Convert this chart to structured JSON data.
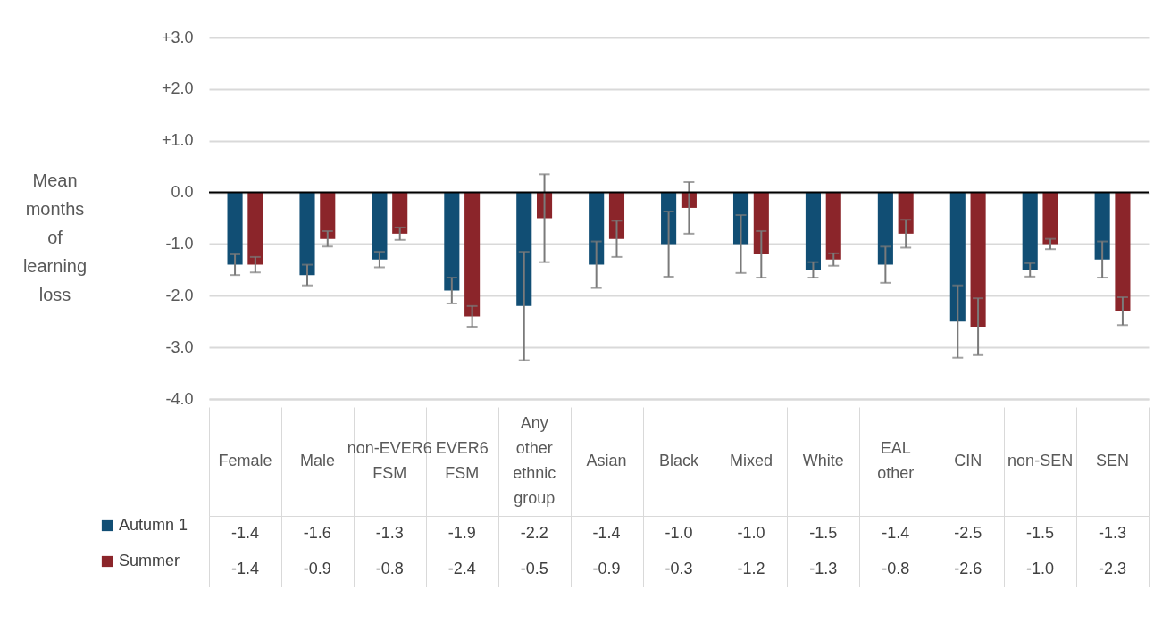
{
  "chart_data": {
    "type": "bar",
    "ylabel": "Mean months of learning loss",
    "categories": [
      "Female",
      "Male",
      "non-EVER6 FSM",
      "EVER6 FSM",
      "Any other ethnic group",
      "Asian",
      "Black",
      "Mixed",
      "White",
      "EAL other",
      "CIN",
      "non-SEN",
      "SEN"
    ],
    "series": [
      {
        "name": "Autumn 1",
        "color": "#114e74",
        "values": [
          -1.4,
          -1.6,
          -1.3,
          -1.9,
          -2.2,
          -1.4,
          -1.0,
          -1.0,
          -1.5,
          -1.4,
          -2.5,
          -1.5,
          -1.3
        ],
        "value_labels": [
          "-1.4",
          "-1.6",
          "-1.3",
          "-1.9",
          "-2.2",
          "-1.4",
          "-1.0",
          "-1.0",
          "-1.5",
          "-1.4",
          "-2.5",
          "-1.5",
          "-1.3"
        ],
        "errors": [
          [
            -1.6,
            -1.2
          ],
          [
            -1.8,
            -1.4
          ],
          [
            -1.45,
            -1.15
          ],
          [
            -2.15,
            -1.65
          ],
          [
            -3.25,
            -1.15
          ],
          [
            -1.85,
            -0.95
          ],
          [
            -1.63,
            -0.37
          ],
          [
            -1.56,
            -0.44
          ],
          [
            -1.65,
            -1.35
          ],
          [
            -1.75,
            -1.05
          ],
          [
            -3.2,
            -1.8
          ],
          [
            -1.63,
            -1.37
          ],
          [
            -1.65,
            -0.95
          ]
        ]
      },
      {
        "name": "Summer",
        "color": "#8b252a",
        "values": [
          -1.4,
          -0.9,
          -0.8,
          -2.4,
          -0.5,
          -0.9,
          -0.3,
          -1.2,
          -1.3,
          -0.8,
          -2.6,
          -1.0,
          -2.3
        ],
        "value_labels": [
          "-1.4",
          "-0.9",
          "-0.8",
          "-2.4",
          "-0.5",
          "-0.9",
          "-0.3",
          "-1.2",
          "-1.3",
          "-0.8",
          "-2.6",
          "-1.0",
          "-2.3"
        ],
        "errors": [
          [
            -1.55,
            -1.25
          ],
          [
            -1.05,
            -0.75
          ],
          [
            -0.92,
            -0.68
          ],
          [
            -2.6,
            -2.2
          ],
          [
            -1.35,
            0.35
          ],
          [
            -1.25,
            -0.55
          ],
          [
            -0.8,
            0.2
          ],
          [
            -1.65,
            -0.75
          ],
          [
            -1.42,
            -1.18
          ],
          [
            -1.07,
            -0.53
          ],
          [
            -3.15,
            -2.05
          ],
          [
            -1.1,
            -0.9
          ],
          [
            -2.57,
            -2.03
          ]
        ]
      }
    ],
    "ylim": [
      -4,
      3
    ],
    "yticks": [
      {
        "value": 3,
        "label": "+3.0"
      },
      {
        "value": 2,
        "label": "+2.0"
      },
      {
        "value": 1,
        "label": "+1.0"
      },
      {
        "value": 0,
        "label": "0.0"
      },
      {
        "value": -1,
        "label": "-1.0"
      },
      {
        "value": -2,
        "label": "-2.0"
      },
      {
        "value": -3,
        "label": "-3.0"
      },
      {
        "value": -4,
        "label": "-4.0"
      }
    ],
    "ref_lines": [
      {
        "axis": "y",
        "value": 0,
        "color": "#000000"
      }
    ],
    "grid": "y",
    "legend": "bottom left"
  }
}
